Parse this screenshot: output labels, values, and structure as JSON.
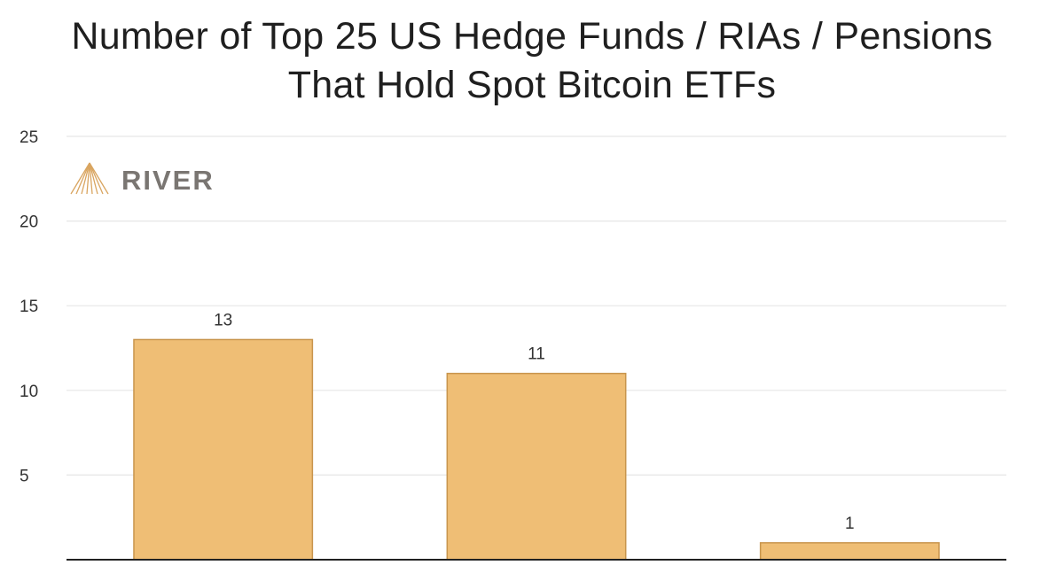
{
  "chart_data": {
    "type": "bar",
    "title_lines": [
      "Number of Top 25 US Hedge Funds / RIAs / Pensions",
      "That Hold Spot Bitcoin ETFs"
    ],
    "categories": [
      "",
      "",
      ""
    ],
    "values": [
      13,
      11,
      1
    ],
    "data_labels": [
      "13",
      "11",
      "1"
    ],
    "yticks": [
      5,
      10,
      15,
      20,
      25
    ],
    "ytick_labels": [
      "5",
      "10",
      "15",
      "20",
      "25"
    ],
    "ylim": [
      0,
      25
    ],
    "xlabel": "",
    "ylabel": "",
    "grid": true,
    "bar_color": "#efbe75",
    "bar_edge_color": "#c8954d",
    "grid_color": "#e6e6e6",
    "axis_color": "#222222"
  },
  "brand": {
    "name": "RIVER",
    "logo_icon": "river-logo-icon",
    "text_color": "#7a7672",
    "icon_color": "#d9a560"
  }
}
